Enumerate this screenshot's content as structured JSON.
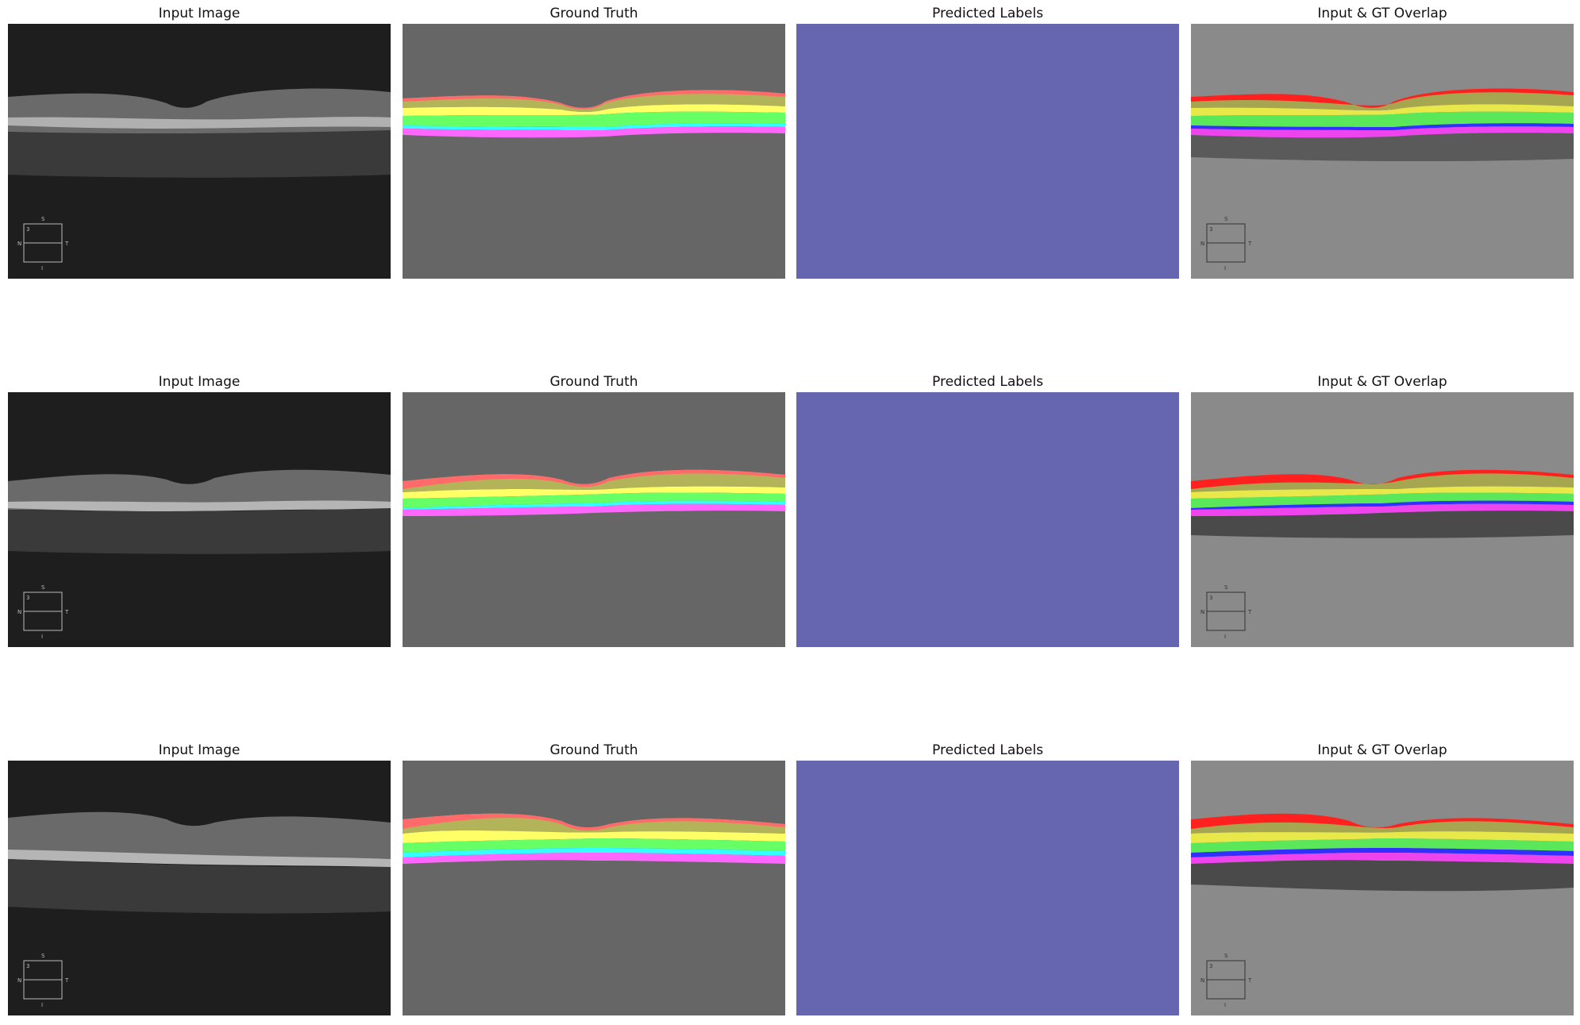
{
  "titles": {
    "input": "Input Image",
    "ground_truth": "Ground Truth",
    "predicted": "Predicted Labels",
    "overlay": "Input & GT Overlap"
  },
  "orientation": {
    "s": "S",
    "n": "N",
    "t": "T",
    "i": "I",
    "slice": "3"
  },
  "colors": {
    "input_background": "#1e1e1e",
    "gt_background": "#666666",
    "predicted_fill": "#6666b0",
    "overlay_background": "#8a8a8a",
    "layer_red": "#ff6b6b",
    "layer_olive": "#b3b35a",
    "layer_yellow": "#ffff66",
    "layer_green": "#66ff66",
    "layer_cyan": "#33ffff",
    "layer_blue": "#3333ff",
    "layer_magenta": "#ff66ff"
  }
}
